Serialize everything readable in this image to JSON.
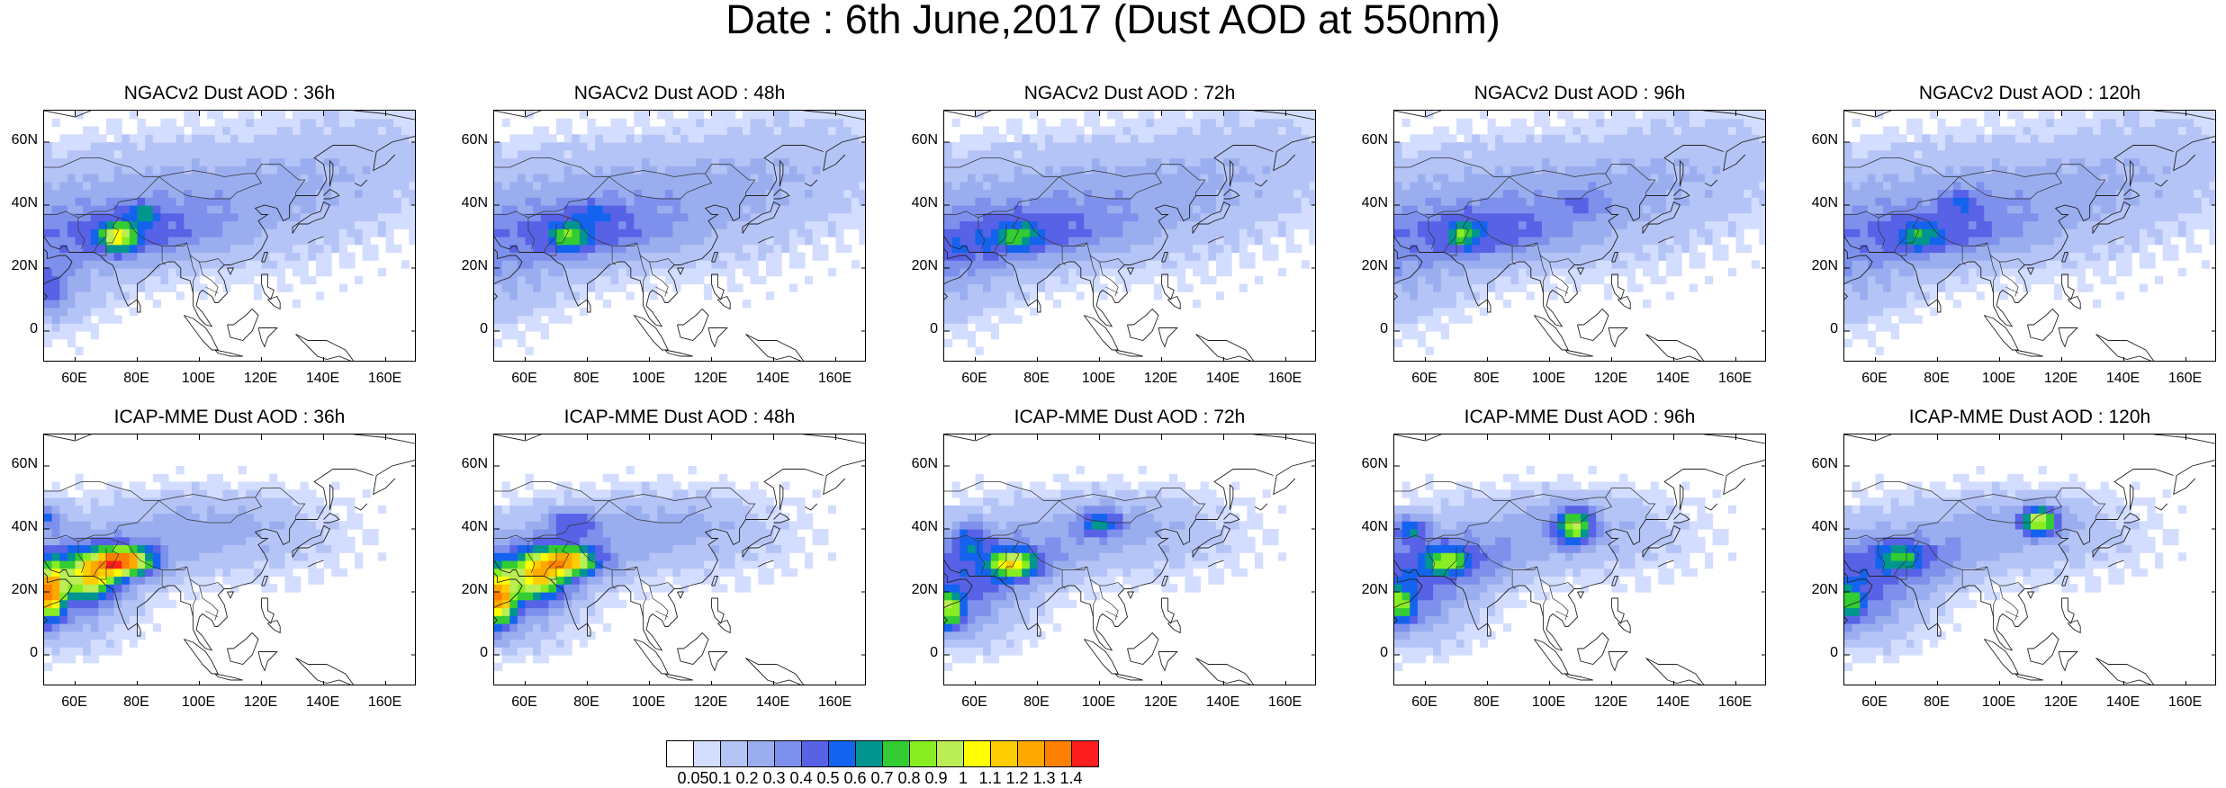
{
  "header": {
    "title": "Date : 6th June,2017 (Dust AOD at 550nm)"
  },
  "axes": {
    "lat_labels": [
      "60N",
      "40N",
      "20N",
      "0"
    ],
    "lon_labels": [
      "60E",
      "80E",
      "100E",
      "120E",
      "140E",
      "160E"
    ]
  },
  "panels": [
    {
      "title": "NGACv2 Dust AOD : 36h"
    },
    {
      "title": "NGACv2 Dust AOD : 48h"
    },
    {
      "title": "NGACv2 Dust AOD : 72h"
    },
    {
      "title": "NGACv2 Dust AOD : 96h"
    },
    {
      "title": "NGACv2 Dust AOD : 120h"
    },
    {
      "title": "ICAP-MME Dust AOD : 36h"
    },
    {
      "title": "ICAP-MME Dust AOD : 48h"
    },
    {
      "title": "ICAP-MME Dust AOD : 72h"
    },
    {
      "title": "ICAP-MME Dust AOD : 96h"
    },
    {
      "title": "ICAP-MME Dust AOD : 120h"
    }
  ],
  "colorbar": {
    "labels": [
      "0.05",
      "0.1",
      "0.2",
      "0.3",
      "0.4",
      "0.5",
      "0.6",
      "0.7",
      "0.8",
      "0.9",
      "1",
      "1.1",
      "1.2",
      "1.3",
      "1.4"
    ],
    "colors": [
      "#ffffff",
      "#d3ddff",
      "#b5c4f6",
      "#9aaeef",
      "#7d90ec",
      "#5862e6",
      "#1463ee",
      "#00958f",
      "#33cc33",
      "#88ee22",
      "#bbee55",
      "#ffff00",
      "#ffcc00",
      "#ffa800",
      "#ff7f00",
      "#ff1e1e"
    ]
  }
}
